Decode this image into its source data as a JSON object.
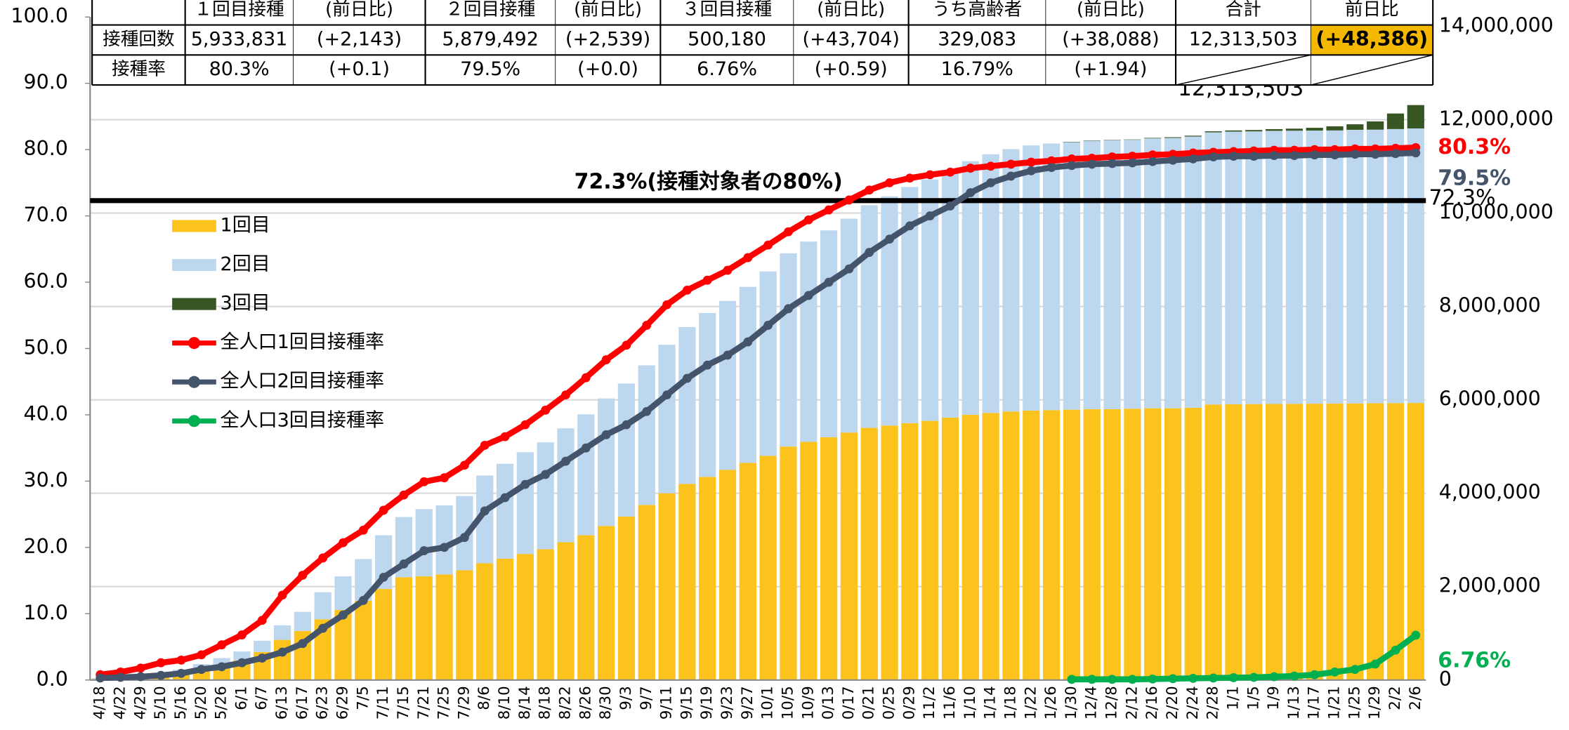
{
  "table": {
    "header": [
      "１回目接種",
      "(前日比)",
      "２回目接種",
      "(前日比)",
      "３回目接種",
      "(前日比)",
      "うち高齢者",
      "(前日比)",
      "合計",
      "前日比"
    ],
    "rows": [
      {
        "label": "接種回数",
        "cells": [
          "5,933,831",
          "(+2,143)",
          "5,879,492",
          "(+2,539)",
          "500,180",
          "(+43,704)",
          "329,083",
          "(+38,088)",
          "12,313,503",
          "(+48,386)"
        ]
      },
      {
        "label": "接種率",
        "cells": [
          "80.3%",
          "(+0.1)",
          "79.5%",
          "(+0.0)",
          "6.76%",
          "(+0.59)",
          "16.79%",
          "(+1.94)"
        ]
      }
    ]
  },
  "chart_data": {
    "type": "combo",
    "categories": [
      "4/18",
      "4/22",
      "4/29",
      "5/10",
      "5/16",
      "5/20",
      "5/26",
      "6/1",
      "6/7",
      "6/13",
      "6/17",
      "6/23",
      "6/29",
      "7/5",
      "7/11",
      "7/15",
      "7/21",
      "7/25",
      "7/29",
      "8/6",
      "8/10",
      "8/14",
      "8/18",
      "8/22",
      "8/26",
      "8/30",
      "9/3",
      "9/7",
      "9/11",
      "9/15",
      "9/19",
      "9/23",
      "9/27",
      "10/1",
      "10/5",
      "10/9",
      "0/13",
      "0/17",
      "0/21",
      "0/25",
      "0/29",
      "11/2",
      "11/6",
      "1/10",
      "1/14",
      "1/18",
      "1/22",
      "1/26",
      "1/30",
      "12/4",
      "12/8",
      "2/12",
      "2/16",
      "2/20",
      "2/24",
      "2/28",
      "1/1",
      "1/5",
      "1/9",
      "1/13",
      "1/17",
      "1/21",
      "1/25",
      "1/29",
      "2/2",
      "2/6"
    ],
    "ylim": [
      0,
      100
    ],
    "yticks": [
      {
        "value": 0,
        "label": "0.0"
      },
      {
        "value": 10,
        "label": "10.0"
      },
      {
        "value": 20,
        "label": "20.0"
      },
      {
        "value": 30,
        "label": "30.0"
      },
      {
        "value": 40,
        "label": "40.0"
      },
      {
        "value": 50,
        "label": "50.0"
      },
      {
        "value": 60,
        "label": "60.0"
      },
      {
        "value": 70,
        "label": "70.0"
      },
      {
        "value": 80,
        "label": "80.0"
      },
      {
        "value": 90,
        "label": "90.0"
      },
      {
        "value": 100,
        "label": "100.0"
      }
    ],
    "y2lim": [
      0,
      14200000
    ],
    "y2ticks": [
      0,
      {
        "value": 2000000,
        "label": "2,000,000"
      },
      {
        "value": 4000000,
        "label": "4,000,000"
      },
      {
        "value": 6000000,
        "label": "6,000,000"
      },
      {
        "value": 8000000,
        "label": "8,000,000"
      },
      {
        "value": 10000000,
        "label": "10,000,000"
      },
      {
        "value": 12000000,
        "label": "12,000,000"
      },
      {
        "value": 14000000,
        "label": "14,000,000"
      }
    ],
    "grid": "y2",
    "reference_line": {
      "value": 72.3,
      "label": "72.3%(接種対象者の80%)",
      "end_label": "72.3%"
    },
    "total_label": {
      "value": 12313503,
      "label": "12,313,503"
    },
    "series": [
      {
        "name": "1回目",
        "type": "bar",
        "axis": "y2",
        "color": "#fcc31c",
        "values": [
          20000,
          40000,
          60000,
          100000,
          150000,
          220000,
          320000,
          420000,
          600000,
          860000,
          1050000,
          1300000,
          1500000,
          1700000,
          1950000,
          2200000,
          2220000,
          2260000,
          2350000,
          2500000,
          2600000,
          2700000,
          2800000,
          2950000,
          3100000,
          3300000,
          3500000,
          3750000,
          4000000,
          4200000,
          4350000,
          4500000,
          4650000,
          4800000,
          5000000,
          5100000,
          5200000,
          5300000,
          5400000,
          5450000,
          5500000,
          5550000,
          5620000,
          5680000,
          5720000,
          5750000,
          5770000,
          5780000,
          5790000,
          5800000,
          5800000,
          5810000,
          5820000,
          5820000,
          5830000,
          5900000,
          5905000,
          5910000,
          5912000,
          5915000,
          5918000,
          5920000,
          5924000,
          5927000,
          5930000,
          5933831
        ]
      },
      {
        "name": "2回目",
        "type": "bar",
        "axis": "y2",
        "color": "#bdd7ee",
        "values": [
          20000,
          30000,
          40000,
          50000,
          70000,
          120000,
          150000,
          190000,
          240000,
          310000,
          410000,
          580000,
          720000,
          890000,
          1150000,
          1290000,
          1440000,
          1480000,
          1590000,
          1880000,
          2030000,
          2180000,
          2290000,
          2440000,
          2590000,
          2730000,
          2850000,
          2990000,
          3180000,
          3360000,
          3510000,
          3620000,
          3770000,
          3950000,
          4140000,
          4290000,
          4430000,
          4580000,
          4770000,
          4910000,
          5060000,
          5170000,
          5280000,
          5430000,
          5540000,
          5620000,
          5680000,
          5710000,
          5730000,
          5750000,
          5760000,
          5760000,
          5780000,
          5790000,
          5810000,
          5830000,
          5840000,
          5840000,
          5850000,
          5850000,
          5850000,
          5850000,
          5860000,
          5860000,
          5870000,
          5879492
        ]
      },
      {
        "name": "3回目",
        "type": "bar",
        "axis": "y2",
        "color": "#375623",
        "values": [
          null,
          null,
          null,
          null,
          null,
          null,
          null,
          null,
          null,
          null,
          null,
          null,
          null,
          null,
          null,
          null,
          null,
          null,
          null,
          null,
          null,
          null,
          null,
          null,
          null,
          null,
          null,
          null,
          null,
          null,
          null,
          null,
          null,
          null,
          null,
          null,
          null,
          null,
          null,
          null,
          null,
          null,
          null,
          null,
          null,
          null,
          null,
          null,
          7000,
          7000,
          7000,
          7000,
          11000,
          15000,
          18000,
          22000,
          26000,
          30000,
          37000,
          44000,
          59000,
          89000,
          118000,
          177000,
          333000,
          500180
        ]
      },
      {
        "name": "全人口1回目接種率",
        "type": "line",
        "color": "#ff0000",
        "end_label": "80.3%",
        "values": [
          0.8,
          1.2,
          1.8,
          2.6,
          3.0,
          3.8,
          5.3,
          6.8,
          9.0,
          12.8,
          15.8,
          18.4,
          20.7,
          22.6,
          25.6,
          27.9,
          29.9,
          30.5,
          32.4,
          35.4,
          36.7,
          38.5,
          40.7,
          43.0,
          45.6,
          48.3,
          50.5,
          53.5,
          56.6,
          58.8,
          60.3,
          61.8,
          63.7,
          65.6,
          67.6,
          69.4,
          70.9,
          72.4,
          73.9,
          75.0,
          75.7,
          76.2,
          76.6,
          77.2,
          77.5,
          77.8,
          78.1,
          78.3,
          78.6,
          78.7,
          78.9,
          79.0,
          79.2,
          79.3,
          79.5,
          79.6,
          79.7,
          79.8,
          79.9,
          79.9,
          80.0,
          80.0,
          80.1,
          80.1,
          80.2,
          80.3
        ]
      },
      {
        "name": "全人口2回目接種率",
        "type": "line",
        "color": "#44546a",
        "end_label": "79.5%",
        "values": [
          0.3,
          0.4,
          0.5,
          0.7,
          1.0,
          1.6,
          2.0,
          2.6,
          3.3,
          4.2,
          5.5,
          7.8,
          9.8,
          12.0,
          15.5,
          17.5,
          19.5,
          20.0,
          21.5,
          25.5,
          27.5,
          29.5,
          31.0,
          33.0,
          35.0,
          37.0,
          38.5,
          40.5,
          43.0,
          45.5,
          47.5,
          49.0,
          51.0,
          53.5,
          56.0,
          58.0,
          60.0,
          62.0,
          64.5,
          66.5,
          68.5,
          70.0,
          71.5,
          73.5,
          75.0,
          76.0,
          76.8,
          77.3,
          77.6,
          77.8,
          77.9,
          78.0,
          78.2,
          78.4,
          78.6,
          78.9,
          79.0,
          79.0,
          79.1,
          79.1,
          79.2,
          79.2,
          79.3,
          79.3,
          79.4,
          79.5
        ]
      },
      {
        "name": "全人口3回目接種率",
        "type": "line",
        "color": "#00b050",
        "end_label": "6.76%",
        "values": [
          null,
          null,
          null,
          null,
          null,
          null,
          null,
          null,
          null,
          null,
          null,
          null,
          null,
          null,
          null,
          null,
          null,
          null,
          null,
          null,
          null,
          null,
          null,
          null,
          null,
          null,
          null,
          null,
          null,
          null,
          null,
          null,
          null,
          null,
          null,
          null,
          null,
          null,
          null,
          null,
          null,
          null,
          null,
          null,
          null,
          null,
          null,
          null,
          0.1,
          0.1,
          0.1,
          0.1,
          0.15,
          0.2,
          0.25,
          0.3,
          0.35,
          0.4,
          0.5,
          0.6,
          0.8,
          1.2,
          1.6,
          2.4,
          4.5,
          6.76
        ]
      }
    ]
  }
}
